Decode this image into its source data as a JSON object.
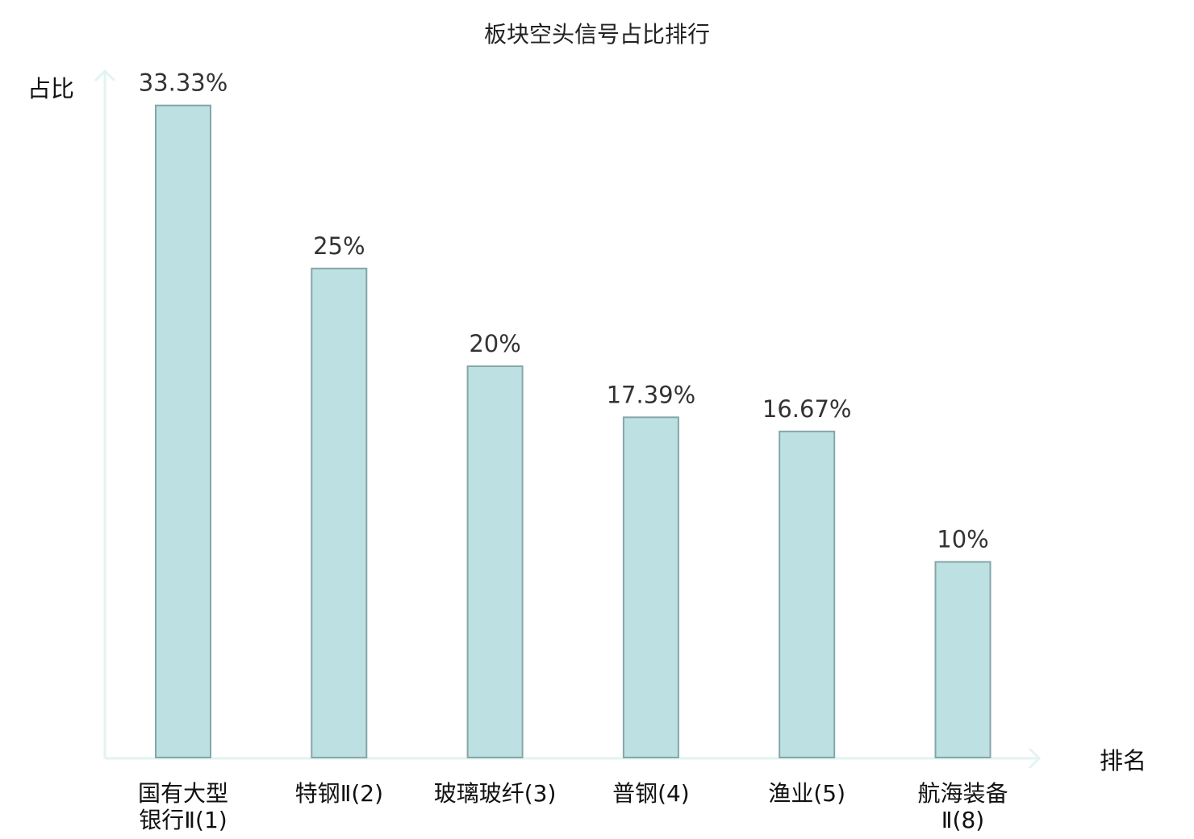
{
  "chart_data": {
    "type": "bar",
    "title": "板块空头信号占比排行",
    "ylabel": "占比",
    "xlabel": "排名",
    "ylim": [
      0,
      35
    ],
    "grid": false,
    "categories": [
      [
        "国有大型",
        "银行Ⅱ(1)"
      ],
      [
        "特钢Ⅱ(2)"
      ],
      [
        "玻璃玻纤(3)"
      ],
      [
        "普钢(4)"
      ],
      [
        "渔业(5)"
      ],
      [
        "航海装备",
        "Ⅱ(8)"
      ]
    ],
    "values": [
      33.33,
      25,
      20,
      17.39,
      16.67,
      10
    ],
    "value_labels": [
      "33.33%",
      "25%",
      "20%",
      "17.39%",
      "16.67%",
      "10%"
    ],
    "highlighted_category_index": 5
  },
  "colors": {
    "bar_fill": "#bde0e3",
    "bar_stroke": "#86a6a7",
    "axis": "#e3f3f1",
    "highlight_text": "#e01b1b",
    "normal_text": "#111111"
  }
}
